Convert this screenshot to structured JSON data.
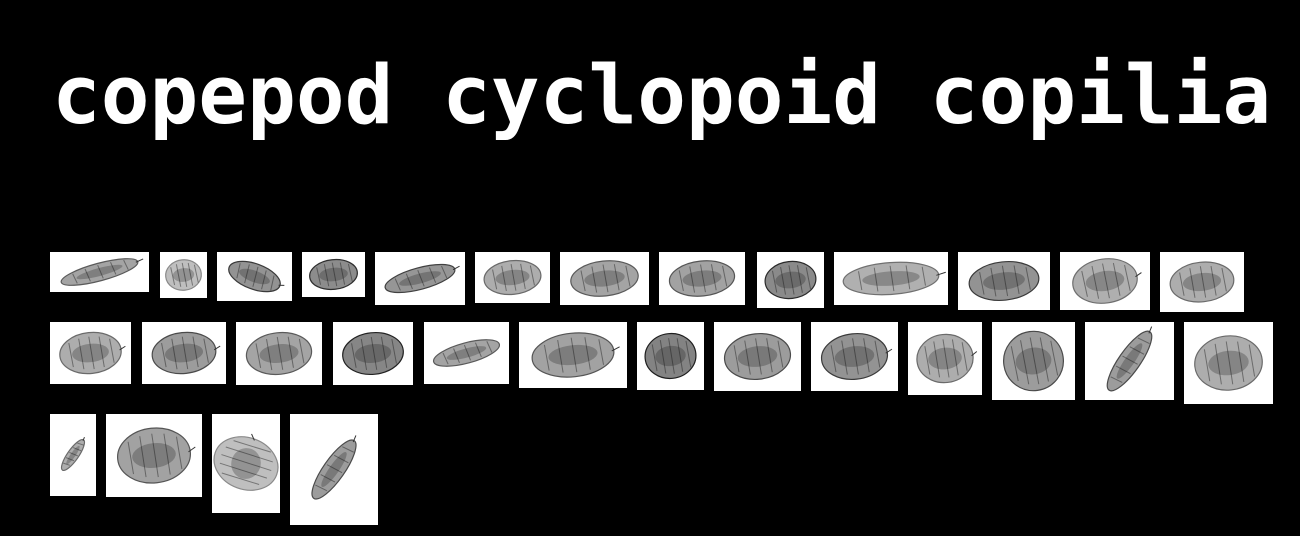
{
  "title": "copepod cyclopoid copilia",
  "colors": {
    "background": "#000000",
    "title": "#ffffff",
    "tile_background": "#ffffff"
  },
  "specimens": [
    {
      "shade": "#5a5a5a",
      "shape": "slender",
      "tail": true
    },
    {
      "shade": "#8a8a8a",
      "shape": "oval",
      "tail": false
    },
    {
      "shade": "#3a3a3a",
      "shape": "leaf",
      "tail": true
    },
    {
      "shade": "#2e2e2e",
      "shape": "oval",
      "tail": false
    },
    {
      "shade": "#404040",
      "shape": "slender",
      "tail": true
    },
    {
      "shade": "#6a6a6a",
      "shape": "oval",
      "tail": false
    },
    {
      "shade": "#5a5a5a",
      "shape": "oval",
      "tail": false
    },
    {
      "shade": "#555555",
      "shape": "oval",
      "tail": false
    },
    {
      "shade": "#2a2a2a",
      "shape": "oval",
      "tail": false
    },
    {
      "shade": "#707070",
      "shape": "wide",
      "tail": true
    },
    {
      "shade": "#3a3a3a",
      "shape": "oval",
      "tail": false
    },
    {
      "shade": "#6e6e6e",
      "shape": "round",
      "tail": true
    },
    {
      "shade": "#6a6a6a",
      "shape": "oval",
      "tail": false
    },
    {
      "shade": "#6a6a6a",
      "shape": "oval",
      "tail": true
    },
    {
      "shade": "#4a4a4a",
      "shape": "oval",
      "tail": true
    },
    {
      "shade": "#5a5a5a",
      "shape": "oval",
      "tail": false
    },
    {
      "shade": "#222222",
      "shape": "oval",
      "tail": false
    },
    {
      "shade": "#5a5a5a",
      "shape": "slender",
      "tail": false
    },
    {
      "shade": "#555555",
      "shape": "oval",
      "tail": true
    },
    {
      "shade": "#1e1e1e",
      "shape": "oval",
      "tail": false
    },
    {
      "shade": "#4a4a4a",
      "shape": "oval",
      "tail": false
    },
    {
      "shade": "#3a3a3a",
      "shape": "oval",
      "tail": true
    },
    {
      "shade": "#6a6a6a",
      "shape": "oval",
      "tail": true
    },
    {
      "shade": "#4a4a4a",
      "shape": "round",
      "tail": false
    },
    {
      "shade": "#4a4a4a",
      "shape": "slender",
      "tail": true
    },
    {
      "shade": "#6a6a6a",
      "shape": "oval",
      "tail": false
    },
    {
      "shade": "#6a6a6a",
      "shape": "slender",
      "tail": true
    },
    {
      "shade": "#555555",
      "shape": "oval",
      "tail": true
    },
    {
      "shade": "#8a8a8a",
      "shape": "oval",
      "tail": true
    },
    {
      "shade": "#4a4a4a",
      "shape": "slender",
      "tail": true
    }
  ]
}
